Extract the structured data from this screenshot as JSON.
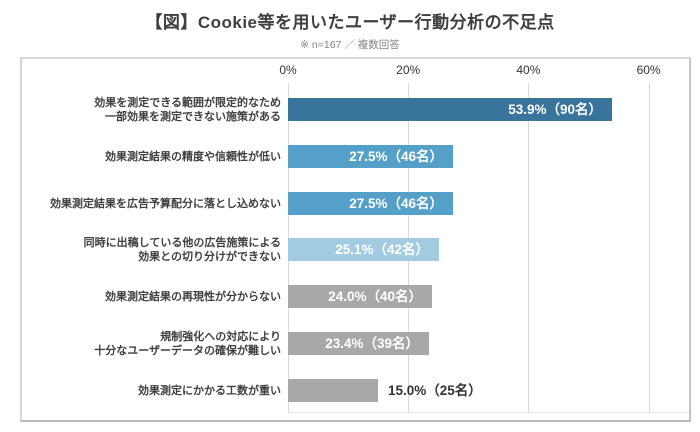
{
  "title": "【図】Cookie等を用いたユーザー行動分析の不足点",
  "subtitle": "※ n=167 ／ 複数回答",
  "colors": {
    "dark_blue": "#38749b",
    "mid_blue": "#55a0c8",
    "light_blue": "#a2cbe2",
    "gray": "#a8a8a8",
    "title_text": "#3f3f3f",
    "subtitle_text": "#828282",
    "category_text": "#404040",
    "grid": "#d9d9d9",
    "box_border": "#c9c9c9",
    "value_inside_text": "#ffffff",
    "value_outside_text": "#333333"
  },
  "chart_data": {
    "type": "bar",
    "orientation": "horizontal",
    "title": "【図】Cookie等を用いたユーザー行動分析の不足点",
    "note": "※ n=167 ／ 複数回答",
    "x_tick_labels": [
      "0%",
      "20%",
      "40%",
      "60%"
    ],
    "x_tick_values": [
      0,
      20,
      40,
      60
    ],
    "x_axis_max": 66.7,
    "grid": true,
    "categories": [
      "効果を測定できる範囲が限定的なため一部効果を測定できない施策がある",
      "効果測定結果の精度や信頼性が低い",
      "効果測定結果を広告予算配分に落とし込めない",
      "同時に出稿している他の広告施策による効果との切り分けができない",
      "効果測定結果の再現性が分からない",
      "規制強化への対応により十分なユーザーデータの確保が難しい",
      "効果測定にかかる工数が重い"
    ],
    "values": [
      53.9,
      27.5,
      27.5,
      25.1,
      24.0,
      23.4,
      15.0
    ],
    "counts": [
      90,
      46,
      46,
      42,
      40,
      39,
      25
    ],
    "bars": [
      {
        "label_lines": [
          "効果を測定できる範囲が限定的なため",
          "一部効果を測定できない施策がある"
        ],
        "value_pct": 53.9,
        "count": 90,
        "value_label": "53.9%（90名）",
        "color_key": "dark_blue",
        "value_position": "inside"
      },
      {
        "label_lines": [
          "効果測定結果の精度や信頼性が低い"
        ],
        "value_pct": 27.5,
        "count": 46,
        "value_label": "27.5%（46名）",
        "color_key": "mid_blue",
        "value_position": "inside"
      },
      {
        "label_lines": [
          "効果測定結果を広告予算配分に落とし込めない"
        ],
        "value_pct": 27.5,
        "count": 46,
        "value_label": "27.5%（46名）",
        "color_key": "mid_blue",
        "value_position": "inside"
      },
      {
        "label_lines": [
          "同時に出稿している他の広告施策による",
          "効果との切り分けができない"
        ],
        "value_pct": 25.1,
        "count": 42,
        "value_label": "25.1%（42名）",
        "color_key": "light_blue",
        "value_position": "inside"
      },
      {
        "label_lines": [
          "効果測定結果の再現性が分からない"
        ],
        "value_pct": 24.0,
        "count": 40,
        "value_label": "24.0%（40名）",
        "color_key": "gray",
        "value_position": "inside"
      },
      {
        "label_lines": [
          "規制強化への対応により",
          "十分なユーザーデータの確保が難しい"
        ],
        "value_pct": 23.4,
        "count": 39,
        "value_label": "23.4%（39名）",
        "color_key": "gray",
        "value_position": "inside"
      },
      {
        "label_lines": [
          "効果測定にかかる工数が重い"
        ],
        "value_pct": 15.0,
        "count": 25,
        "value_label": "15.0%（25名）",
        "color_key": "gray",
        "value_position": "outside"
      }
    ]
  }
}
